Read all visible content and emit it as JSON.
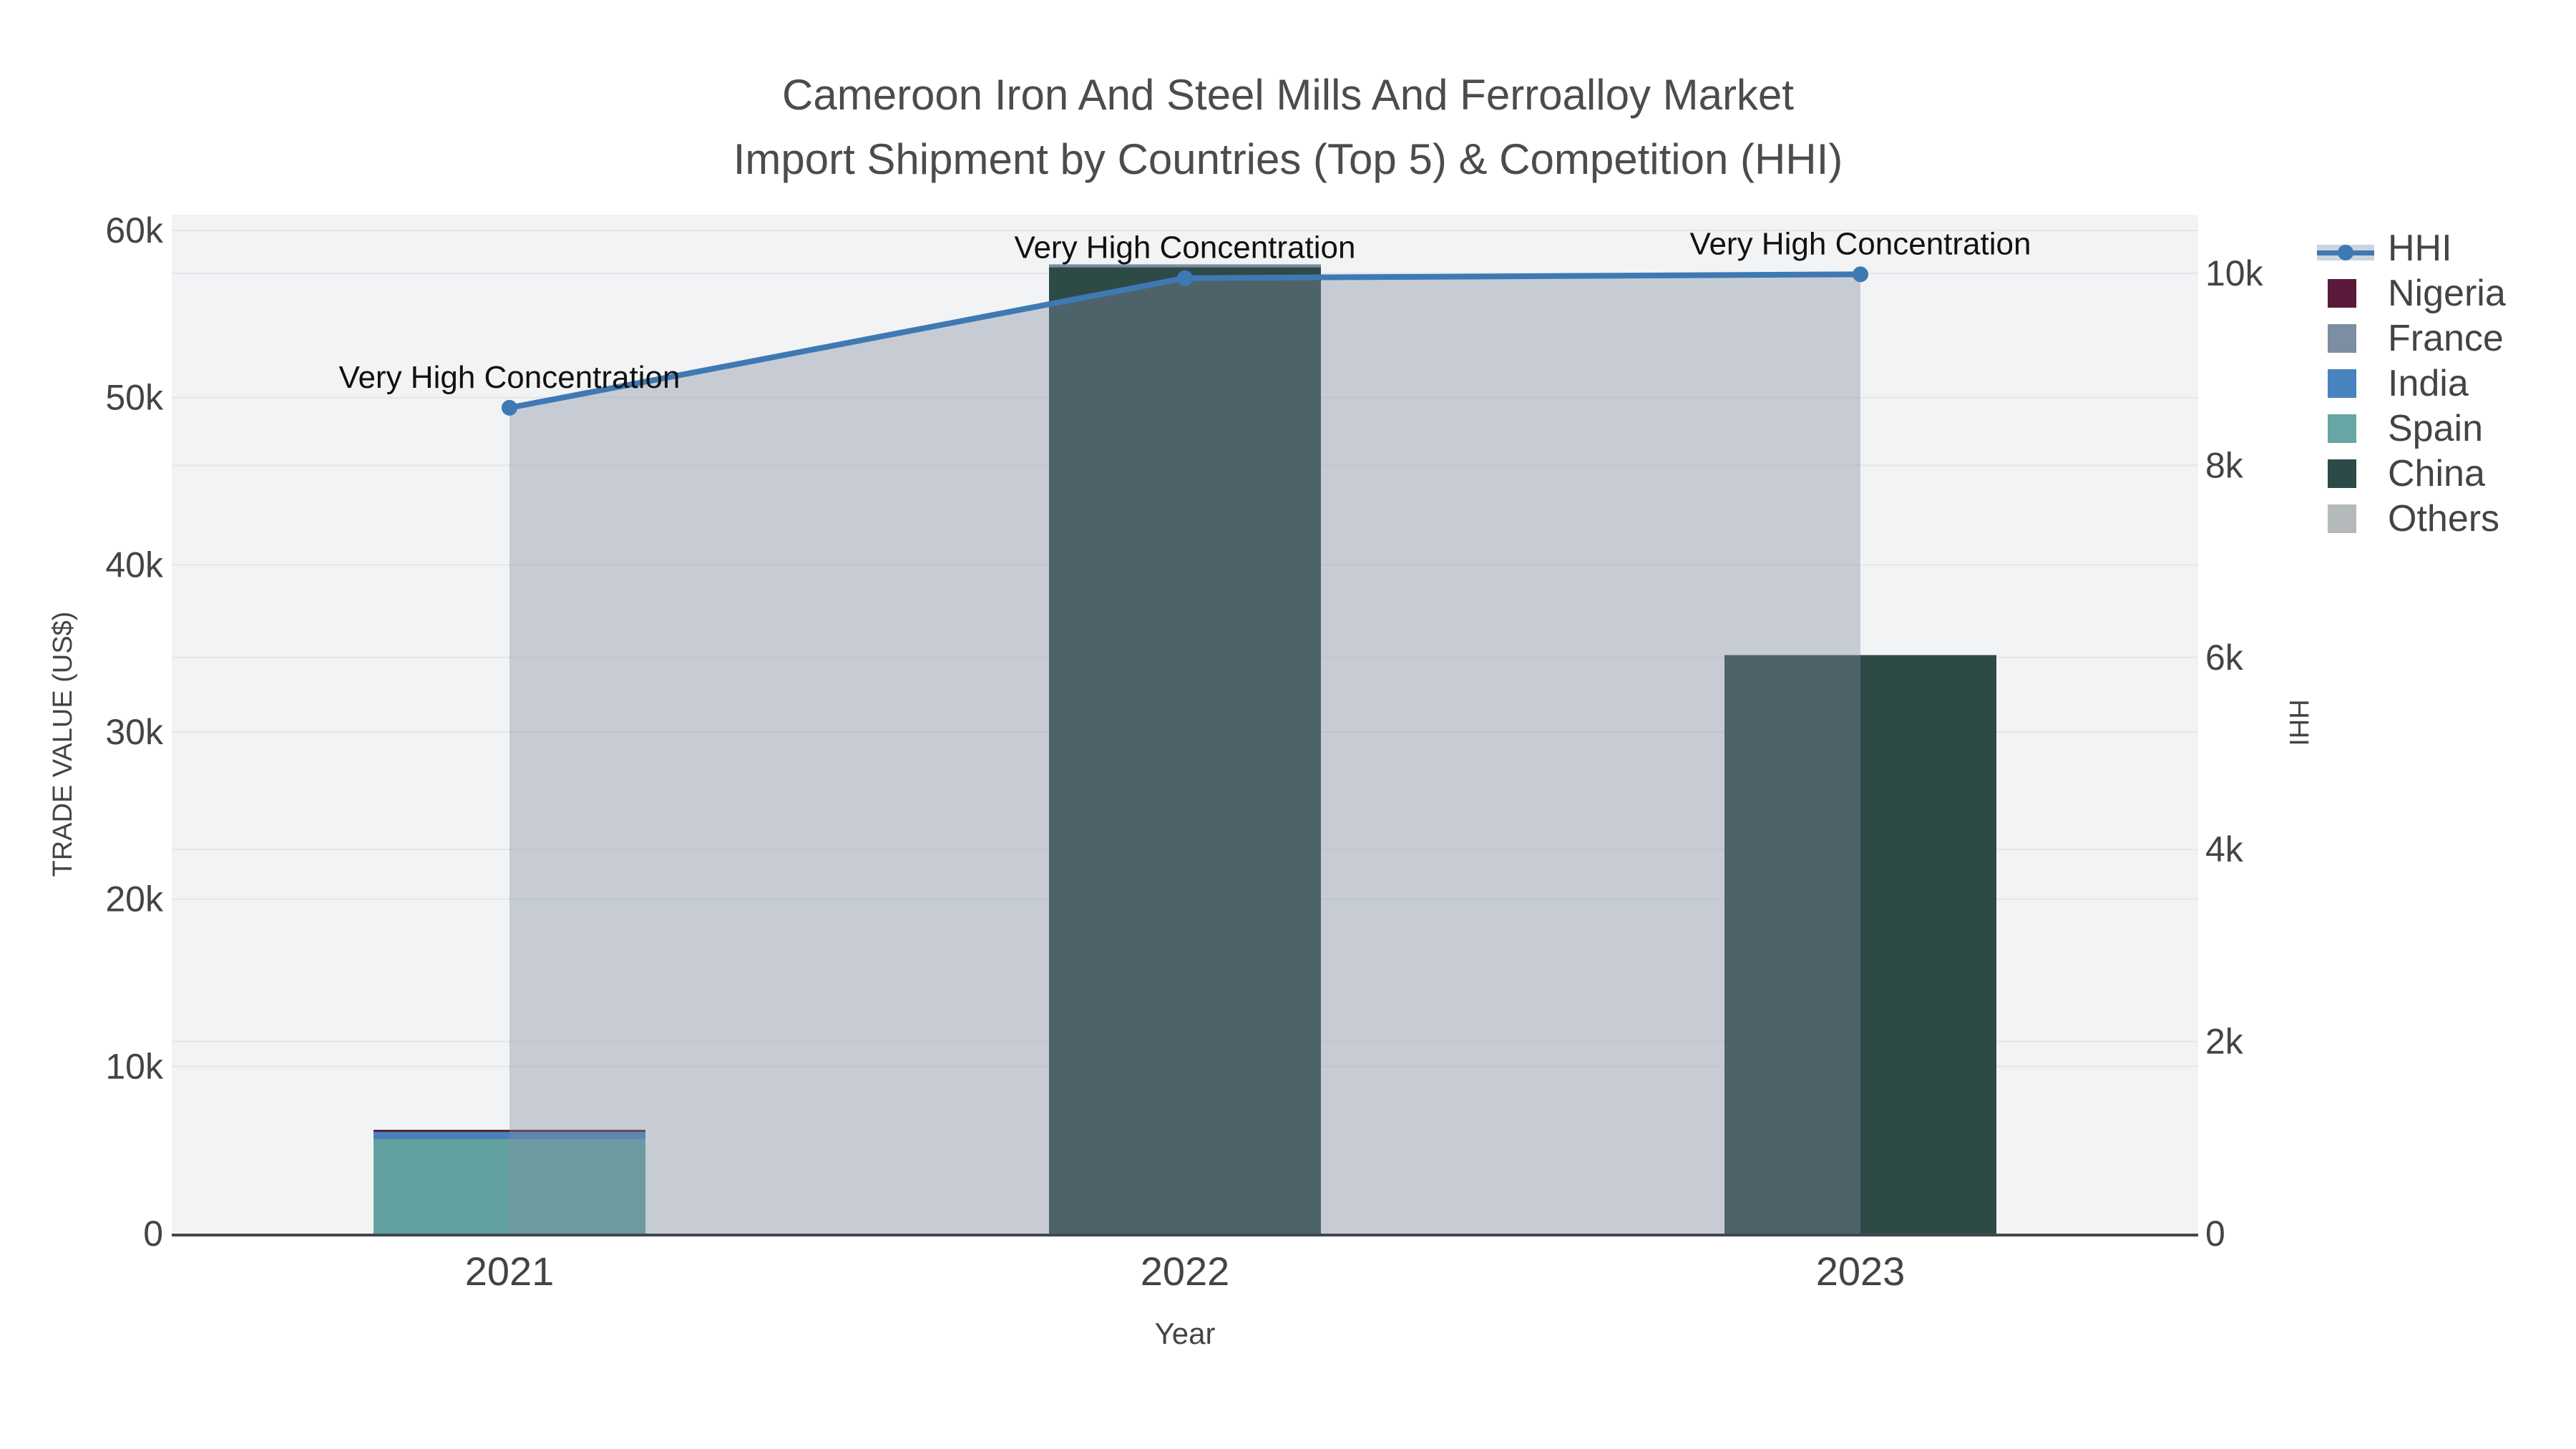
{
  "title": {
    "line1": "Cameroon Iron And Steel Mills And Ferroalloy Market",
    "line2": "Import Shipment by Countries (Top 5) & Competition (HHI)"
  },
  "chart_data": {
    "type": "bar",
    "subtype": "stacked-bars-with-line",
    "categories": [
      "2021",
      "2022",
      "2023"
    ],
    "bar_series": [
      {
        "name": "Nigeria",
        "color": "#571c3d",
        "values": [
          130,
          0,
          0
        ]
      },
      {
        "name": "France",
        "color": "#7d8ea3",
        "values": [
          0,
          170,
          0
        ]
      },
      {
        "name": "India",
        "color": "#4781ba",
        "values": [
          430,
          0,
          0
        ]
      },
      {
        "name": "Spain",
        "color": "#62a1a0",
        "values": [
          5650,
          0,
          0
        ]
      },
      {
        "name": "China",
        "color": "#2e4a47",
        "values": [
          0,
          57800,
          34600
        ]
      },
      {
        "name": "Others",
        "color": "#b4b9bc",
        "values": [
          0,
          0,
          0
        ]
      }
    ],
    "line_series": {
      "name": "HHI",
      "color": "#3e79b4",
      "fillcolor": "rgba(128,143,161,0.38)",
      "values": [
        8600,
        9950,
        9990
      ]
    },
    "annotations": [
      "Very High Concentration",
      "Very High Concentration",
      "Very High Concentration"
    ],
    "title": "Cameroon Iron And Steel Mills And Ferroalloy Market Import Shipment by Countries (Top 5) & Competition (HHI)",
    "xlabel": "Year",
    "ylabel_left": "TRADE VALUE (US$)",
    "ylabel_right": "HHI",
    "y_left": {
      "tick_labels": [
        "0",
        "10k",
        "20k",
        "30k",
        "40k",
        "50k",
        "60k"
      ],
      "tick_values": [
        0,
        10000,
        20000,
        30000,
        40000,
        50000,
        60000
      ],
      "range": [
        0,
        60000
      ],
      "grid": true
    },
    "y_right": {
      "tick_labels": [
        "0",
        "2k",
        "4k",
        "6k",
        "8k",
        "10k"
      ],
      "tick_values": [
        0,
        2000,
        4000,
        6000,
        8000,
        10000
      ],
      "range": [
        0,
        10000
      ],
      "grid": true
    },
    "legend_position": "right"
  },
  "legend": {
    "items": [
      {
        "label": "HHI",
        "type": "line",
        "color": "#3e79b4"
      },
      {
        "label": "Nigeria",
        "type": "swatch",
        "color": "#5a1a3b"
      },
      {
        "label": "France",
        "type": "swatch",
        "color": "#7d8ea3"
      },
      {
        "label": "India",
        "type": "swatch",
        "color": "#4783bf"
      },
      {
        "label": "Spain",
        "type": "swatch",
        "color": "#66a6a4"
      },
      {
        "label": "China",
        "type": "swatch",
        "color": "#2c4a47"
      },
      {
        "label": "Others",
        "type": "swatch",
        "color": "#b4b9bc"
      }
    ]
  },
  "colors": {
    "plot_bg": "#f2f3f4",
    "gridline": "#e4e6e8",
    "axis_line": "#42474c",
    "tick_text": "#444444",
    "annotation_text": "#111111",
    "title_text": "#4c4c4c"
  }
}
